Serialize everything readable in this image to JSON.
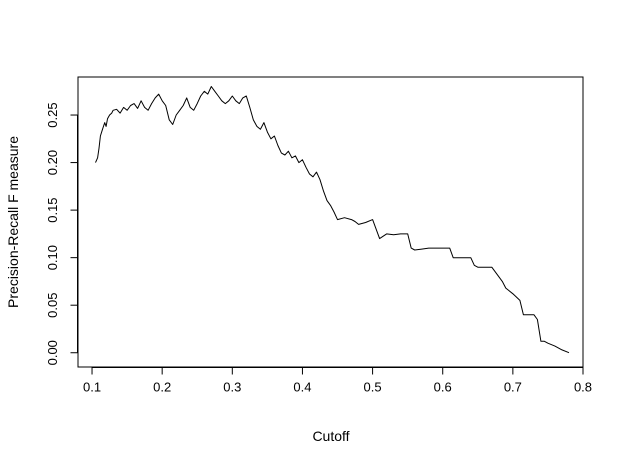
{
  "chart_data": {
    "type": "line",
    "title": "",
    "xlabel": "Cutoff",
    "ylabel": "Precision-Recall F measure",
    "xlim": [
      0.08,
      0.8
    ],
    "ylim": [
      -0.015,
      0.29
    ],
    "x_ticks": [
      0.1,
      0.2,
      0.3,
      0.4,
      0.5,
      0.6,
      0.7,
      0.8
    ],
    "x_tick_labels": [
      "0.1",
      "0.2",
      "0.3",
      "0.4",
      "0.5",
      "0.6",
      "0.7",
      "0.8"
    ],
    "y_ticks": [
      0.0,
      0.05,
      0.1,
      0.15,
      0.2,
      0.25
    ],
    "y_tick_labels": [
      "0.00",
      "0.05",
      "0.10",
      "0.15",
      "0.20",
      "0.25"
    ],
    "grid": false,
    "line_color": "#000000",
    "series": [
      {
        "x": [
          0.105,
          0.108,
          0.11,
          0.112,
          0.115,
          0.118,
          0.12,
          0.122,
          0.125,
          0.128,
          0.13,
          0.135,
          0.14,
          0.145,
          0.15,
          0.155,
          0.16,
          0.165,
          0.17,
          0.175,
          0.18,
          0.185,
          0.19,
          0.195,
          0.2,
          0.205,
          0.21,
          0.215,
          0.22,
          0.225,
          0.23,
          0.235,
          0.24,
          0.245,
          0.25,
          0.255,
          0.26,
          0.265,
          0.27,
          0.275,
          0.28,
          0.285,
          0.29,
          0.295,
          0.3,
          0.305,
          0.31,
          0.315,
          0.32,
          0.325,
          0.33,
          0.335,
          0.34,
          0.345,
          0.35,
          0.355,
          0.36,
          0.365,
          0.37,
          0.375,
          0.38,
          0.385,
          0.39,
          0.395,
          0.4,
          0.405,
          0.41,
          0.415,
          0.42,
          0.425,
          0.43,
          0.435,
          0.44,
          0.445,
          0.45,
          0.46,
          0.47,
          0.475,
          0.48,
          0.49,
          0.5,
          0.505,
          0.51,
          0.52,
          0.53,
          0.54,
          0.55,
          0.555,
          0.56,
          0.57,
          0.58,
          0.59,
          0.6,
          0.61,
          0.615,
          0.62,
          0.63,
          0.64,
          0.645,
          0.65,
          0.66,
          0.67,
          0.68,
          0.685,
          0.69,
          0.7,
          0.71,
          0.715,
          0.72,
          0.73,
          0.735,
          0.74,
          0.745,
          0.75,
          0.76,
          0.77,
          0.78
        ],
        "y": [
          0.2,
          0.205,
          0.215,
          0.228,
          0.235,
          0.242,
          0.238,
          0.246,
          0.25,
          0.252,
          0.255,
          0.256,
          0.252,
          0.258,
          0.255,
          0.26,
          0.262,
          0.257,
          0.265,
          0.258,
          0.255,
          0.262,
          0.268,
          0.272,
          0.265,
          0.26,
          0.245,
          0.24,
          0.25,
          0.255,
          0.26,
          0.268,
          0.258,
          0.255,
          0.262,
          0.27,
          0.275,
          0.272,
          0.28,
          0.275,
          0.27,
          0.265,
          0.262,
          0.265,
          0.27,
          0.265,
          0.262,
          0.268,
          0.27,
          0.258,
          0.245,
          0.238,
          0.235,
          0.242,
          0.232,
          0.225,
          0.228,
          0.218,
          0.21,
          0.208,
          0.212,
          0.205,
          0.207,
          0.2,
          0.203,
          0.195,
          0.188,
          0.185,
          0.19,
          0.182,
          0.17,
          0.16,
          0.155,
          0.148,
          0.14,
          0.142,
          0.14,
          0.138,
          0.135,
          0.137,
          0.14,
          0.13,
          0.12,
          0.125,
          0.124,
          0.125,
          0.125,
          0.11,
          0.108,
          0.109,
          0.11,
          0.11,
          0.11,
          0.11,
          0.1,
          0.1,
          0.1,
          0.1,
          0.092,
          0.09,
          0.09,
          0.09,
          0.08,
          0.075,
          0.068,
          0.062,
          0.055,
          0.04,
          0.04,
          0.04,
          0.035,
          0.012,
          0.012,
          0.01,
          0.007,
          0.003,
          0.0
        ]
      }
    ]
  }
}
